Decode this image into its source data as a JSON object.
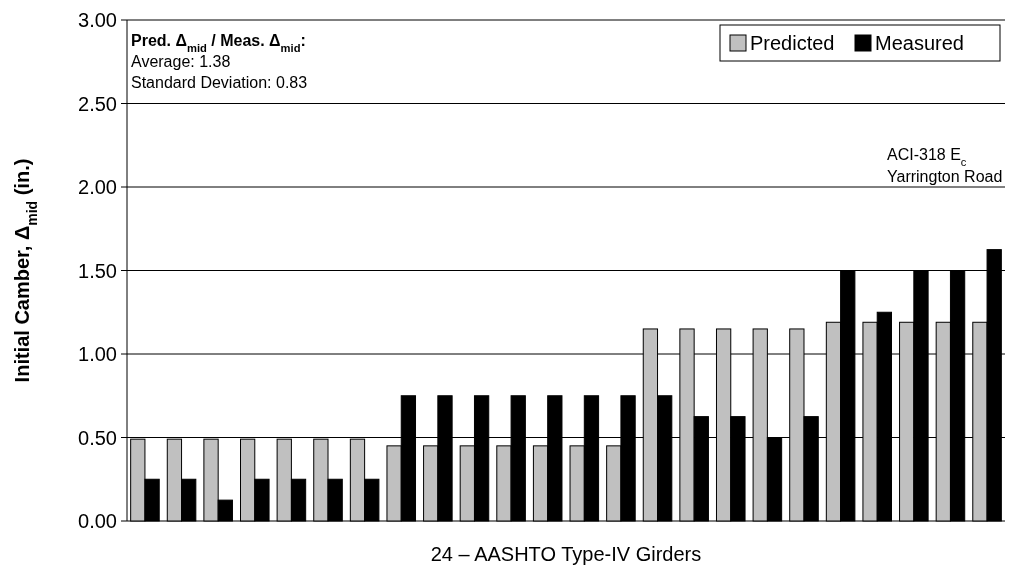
{
  "chart_data": {
    "type": "bar",
    "xlabel": "24 – AASHTO Type-IV Girders",
    "ylabel": "Initial Camber, Δ$_{mid}$ (in.)",
    "categories": [
      null,
      null,
      null,
      null,
      null,
      null,
      null,
      null,
      null,
      null,
      null,
      null,
      null,
      null,
      null,
      null,
      null,
      null,
      null,
      null,
      null,
      null,
      null,
      null
    ],
    "series": [
      {
        "name": "Predicted",
        "color": "#c0c0c0",
        "values": [
          0.49,
          0.49,
          0.49,
          0.49,
          0.49,
          0.49,
          0.49,
          0.45,
          0.45,
          0.45,
          0.45,
          0.45,
          0.45,
          0.45,
          1.15,
          1.15,
          1.15,
          1.15,
          1.15,
          1.19,
          1.19,
          1.19,
          1.19,
          1.19
        ]
      },
      {
        "name": "Measured",
        "color": "#000000",
        "values": [
          0.25,
          0.25,
          0.125,
          0.25,
          0.25,
          0.25,
          0.25,
          0.75,
          0.75,
          0.75,
          0.75,
          0.75,
          0.75,
          0.75,
          0.75,
          0.625,
          0.625,
          0.5,
          0.625,
          1.5,
          1.25,
          1.5,
          1.5,
          1.625
        ]
      }
    ],
    "ylim": [
      0,
      3
    ],
    "yticks": [
      {
        "value": 0,
        "label": "0.00"
      },
      {
        "value": 0.5,
        "label": "0.50"
      },
      {
        "value": 1,
        "label": "1.00"
      },
      {
        "value": 1.5,
        "label": "1.50"
      },
      {
        "value": 2,
        "label": "2.00"
      },
      {
        "value": 2.5,
        "label": "2.50"
      },
      {
        "value": 3,
        "label": "3.00"
      }
    ],
    "grid": "y",
    "legend": "top right",
    "annotations": [
      "Pred. Δ$_{mid}$ / Meas. Δ$_{mid}$:",
      "Average: 1.38",
      "Standard Deviation: 0.83",
      "ACI-318 E$_{c}$",
      "Yarrington Road"
    ]
  }
}
